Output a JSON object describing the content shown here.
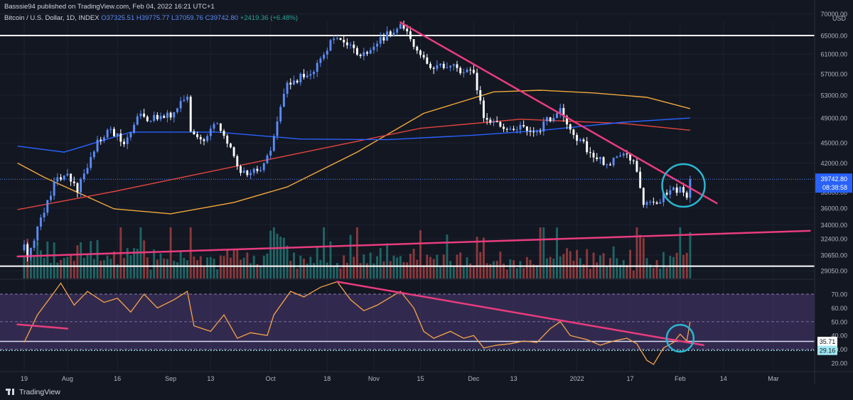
{
  "header": {
    "publish_line": "Basssie94 published on TradingView.com, Feb 04, 2022 16:21 UTC+1",
    "symbol": "Bitcoin / U.S. Dollar, 1D, INDEX",
    "ohlc": {
      "o": "O37325.51",
      "h": "H39775.77",
      "l": "L37059.76",
      "c": "C39742.80",
      "change": "+2419.36 (+6.48%)"
    }
  },
  "footer": {
    "brand": "TradingView"
  },
  "colors": {
    "bg": "#131722",
    "up": "#5b8cf7",
    "down": "#ffffff",
    "vol_up": "#26a69a",
    "vol_down": "#ef5350",
    "trend": "#e93c7e",
    "level": "#ffffff",
    "circle": "#29b6d0",
    "ma_short": "#f2a93b",
    "ma_mid": "#e0443e",
    "ma_long": "#2962ff",
    "rsi": "#f7a34a",
    "rsi_band": "#4c3a72"
  },
  "chart_data": {
    "type": "candlestick",
    "title": "Bitcoin / U.S. Dollar, 1D, INDEX",
    "price_axis": {
      "currency": "USD",
      "ticks": [
        "70000.00",
        "65000.00",
        "61000.00",
        "57000.00",
        "53000.00",
        "49000.00",
        "45000.00",
        "42000.00",
        "38000.00",
        "36000.00",
        "34000.00",
        "32400.00",
        "30650.00",
        "29050.00"
      ],
      "last_price": "39742.80",
      "countdown": "08:38:58"
    },
    "rsi_axis": {
      "ticks": [
        "70.00",
        "60.00",
        "50.00",
        "40.00",
        "30.00",
        "20.00"
      ],
      "labels": [
        "35.71",
        "29.16"
      ]
    },
    "x_axis": {
      "ticks": [
        "19",
        "Aug",
        "16",
        "Sep",
        "13",
        "Oct",
        "18",
        "Nov",
        "15",
        "Dec",
        "13",
        "2022",
        "17",
        "Feb",
        "14",
        "Mar"
      ]
    },
    "horizontal_levels": [
      65000,
      29500
    ],
    "anchors": [
      [
        "2021-07-19",
        31800
      ],
      [
        "2021-07-20",
        30400
      ],
      [
        "2021-07-22",
        32200
      ],
      [
        "2021-07-26",
        37000
      ],
      [
        "2021-07-29",
        40000
      ],
      [
        "2021-08-01",
        40500
      ],
      [
        "2021-08-04",
        38000
      ],
      [
        "2021-08-10",
        45500
      ],
      [
        "2021-08-14",
        47200
      ],
      [
        "2021-08-18",
        44800
      ],
      [
        "2021-08-22",
        49300
      ],
      [
        "2021-08-28",
        48800
      ],
      [
        "2021-09-02",
        50000
      ],
      [
        "2021-09-06",
        52700
      ],
      [
        "2021-09-07",
        46800
      ],
      [
        "2021-09-11",
        45300
      ],
      [
        "2021-09-15",
        48100
      ],
      [
        "2021-09-20",
        43000
      ],
      [
        "2021-09-22",
        40600
      ],
      [
        "2021-09-28",
        41000
      ],
      [
        "2021-10-01",
        43800
      ],
      [
        "2021-10-06",
        55300
      ],
      [
        "2021-10-14",
        57400
      ],
      [
        "2021-10-20",
        64300
      ],
      [
        "2021-10-25",
        63000
      ],
      [
        "2021-10-28",
        60600
      ],
      [
        "2021-11-02",
        63200
      ],
      [
        "2021-11-09",
        67600
      ],
      [
        "2021-11-12",
        64200
      ],
      [
        "2021-11-16",
        60300
      ],
      [
        "2021-11-19",
        58000
      ],
      [
        "2021-11-25",
        58900
      ],
      [
        "2021-11-28",
        57300
      ],
      [
        "2021-12-01",
        57200
      ],
      [
        "2021-12-04",
        49000
      ],
      [
        "2021-12-10",
        47200
      ],
      [
        "2021-12-16",
        47600
      ],
      [
        "2021-12-20",
        46800
      ],
      [
        "2021-12-27",
        50700
      ],
      [
        "2021-12-30",
        47100
      ],
      [
        "2022-01-05",
        43500
      ],
      [
        "2022-01-10",
        41800
      ],
      [
        "2022-01-14",
        43100
      ],
      [
        "2022-01-18",
        42300
      ],
      [
        "2022-01-21",
        36400
      ],
      [
        "2022-01-24",
        36700
      ],
      [
        "2022-01-28",
        37700
      ],
      [
        "2022-02-01",
        38700
      ],
      [
        "2022-02-03",
        37300
      ],
      [
        "2022-02-04",
        39742.8
      ]
    ],
    "moving_averages": [
      {
        "points": [
          [
            "2021-07-17",
            42000
          ],
          [
            "2021-07-25",
            40000
          ],
          [
            "2021-08-15",
            35900
          ],
          [
            "2021-09-01",
            35300
          ],
          [
            "2021-09-20",
            36700
          ],
          [
            "2021-10-06",
            38700
          ],
          [
            "2021-10-27",
            43600
          ],
          [
            "2021-11-16",
            49800
          ],
          [
            "2021-12-07",
            53600
          ],
          [
            "2021-12-21",
            53900
          ],
          [
            "2022-01-06",
            53400
          ],
          [
            "2022-01-22",
            52600
          ],
          [
            "2022-02-04",
            50600
          ]
        ]
      },
      {
        "points": [
          [
            "2021-07-17",
            35800
          ],
          [
            "2021-08-15",
            38100
          ],
          [
            "2021-09-15",
            41000
          ],
          [
            "2021-10-15",
            44000
          ],
          [
            "2021-11-15",
            47300
          ],
          [
            "2021-12-15",
            48800
          ],
          [
            "2022-01-15",
            48100
          ],
          [
            "2022-02-04",
            47000
          ]
        ]
      },
      {
        "points": [
          [
            "2021-07-17",
            44500
          ],
          [
            "2021-07-31",
            43600
          ],
          [
            "2021-08-20",
            46700
          ],
          [
            "2021-09-15",
            46700
          ],
          [
            "2021-10-10",
            45600
          ],
          [
            "2021-11-05",
            45500
          ],
          [
            "2021-12-01",
            46200
          ],
          [
            "2021-12-20",
            46900
          ],
          [
            "2022-01-15",
            48300
          ],
          [
            "2022-02-04",
            49000
          ]
        ]
      }
    ],
    "trendlines": [
      {
        "from": [
          "2021-11-09",
          68000
        ],
        "to": [
          "2022-02-12",
          36600
        ]
      },
      {
        "from": [
          "2021-07-17",
          30500
        ],
        "to": [
          "2022-03-12",
          33300
        ]
      }
    ],
    "rsi": {
      "range": [
        10,
        80
      ],
      "band": [
        30,
        70
      ],
      "lines": [
        50,
        35.71,
        29.16
      ],
      "anchors": [
        [
          "2021-07-19",
          35
        ],
        [
          "2021-07-23",
          55
        ],
        [
          "2021-07-27",
          68
        ],
        [
          "2021-07-30",
          78
        ],
        [
          "2021-08-03",
          62
        ],
        [
          "2021-08-07",
          72
        ],
        [
          "2021-08-12",
          64
        ],
        [
          "2021-08-16",
          67
        ],
        [
          "2021-08-20",
          57
        ],
        [
          "2021-08-24",
          70
        ],
        [
          "2021-08-28",
          60
        ],
        [
          "2021-09-02",
          66
        ],
        [
          "2021-09-06",
          72
        ],
        [
          "2021-09-08",
          47
        ],
        [
          "2021-09-13",
          43
        ],
        [
          "2021-09-17",
          55
        ],
        [
          "2021-09-21",
          38
        ],
        [
          "2021-09-25",
          42
        ],
        [
          "2021-09-30",
          40
        ],
        [
          "2021-10-02",
          55
        ],
        [
          "2021-10-07",
          72
        ],
        [
          "2021-10-11",
          68
        ],
        [
          "2021-10-16",
          75
        ],
        [
          "2021-10-21",
          79
        ],
        [
          "2021-10-25",
          66
        ],
        [
          "2021-10-29",
          58
        ],
        [
          "2021-11-02",
          62
        ],
        [
          "2021-11-09",
          72
        ],
        [
          "2021-11-13",
          60
        ],
        [
          "2021-11-16",
          43
        ],
        [
          "2021-11-19",
          38
        ],
        [
          "2021-11-24",
          43
        ],
        [
          "2021-11-28",
          38
        ],
        [
          "2021-12-01",
          40
        ],
        [
          "2021-12-04",
          31
        ],
        [
          "2021-12-08",
          33
        ],
        [
          "2021-12-12",
          34
        ],
        [
          "2021-12-16",
          36
        ],
        [
          "2021-12-20",
          35
        ],
        [
          "2021-12-24",
          45
        ],
        [
          "2021-12-27",
          50
        ],
        [
          "2021-12-30",
          40
        ],
        [
          "2022-01-04",
          37
        ],
        [
          "2022-01-08",
          33
        ],
        [
          "2022-01-12",
          36
        ],
        [
          "2022-01-16",
          38
        ],
        [
          "2022-01-19",
          34
        ],
        [
          "2022-01-22",
          22
        ],
        [
          "2022-01-24",
          19
        ],
        [
          "2022-01-27",
          31
        ],
        [
          "2022-01-30",
          35
        ],
        [
          "2022-02-01",
          41
        ],
        [
          "2022-02-03",
          36
        ],
        [
          "2022-02-04",
          50
        ]
      ],
      "trendlines": [
        {
          "from": [
            "2021-07-17",
            48
          ],
          "to": [
            "2021-08-01",
            45
          ]
        },
        {
          "from": [
            "2021-10-21",
            79
          ],
          "to": [
            "2022-02-08",
            33
          ]
        }
      ]
    },
    "annotations": {
      "price_circle": {
        "center": [
          "2022-02-02",
          38900
        ]
      },
      "rsi_circle": {
        "center": [
          "2022-02-01",
          38
        ]
      }
    }
  }
}
